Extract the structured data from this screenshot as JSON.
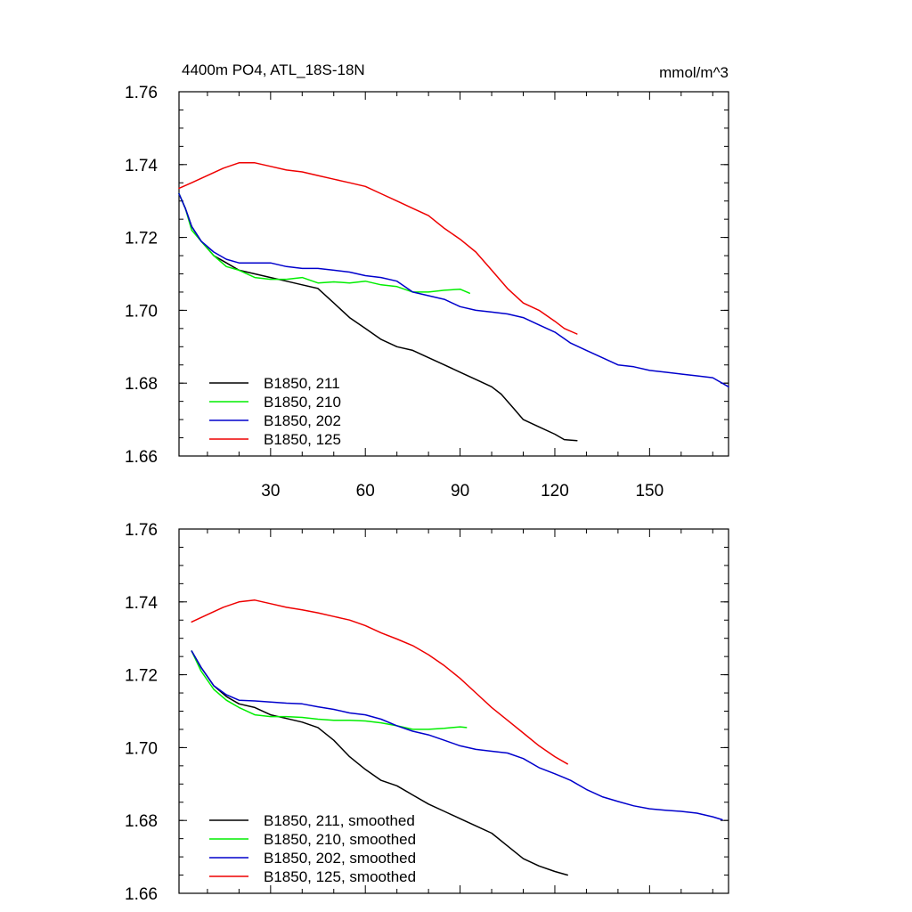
{
  "chart_data": [
    {
      "type": "line",
      "title": "4400m PO4, ATL_18S-18N",
      "units": "mmol/m^3",
      "xlim": [
        1,
        175
      ],
      "ylim": [
        1.66,
        1.76
      ],
      "xticks": [
        30,
        60,
        90,
        120,
        150
      ],
      "yticks": [
        1.66,
        1.68,
        1.7,
        1.72,
        1.74,
        1.76
      ],
      "ytick_labels": [
        "1.66",
        "1.68",
        "1.70",
        "1.72",
        "1.74",
        "1.76"
      ],
      "legend_position": "bottom-left",
      "series": [
        {
          "name": "B1850, 211",
          "color": "#000000",
          "x": [
            1,
            3,
            5,
            8,
            12,
            16,
            20,
            25,
            30,
            35,
            40,
            45,
            50,
            55,
            60,
            65,
            70,
            75,
            80,
            85,
            90,
            95,
            100,
            103,
            107,
            110,
            115,
            120,
            123,
            127
          ],
          "y": [
            1.732,
            1.728,
            1.723,
            1.719,
            1.715,
            1.713,
            1.711,
            1.71,
            1.709,
            1.708,
            1.707,
            1.706,
            1.702,
            1.698,
            1.695,
            1.692,
            1.69,
            1.689,
            1.687,
            1.685,
            1.683,
            1.681,
            1.679,
            1.677,
            1.673,
            1.67,
            1.668,
            1.666,
            1.6645,
            1.6642
          ]
        },
        {
          "name": "B1850, 210",
          "color": "#00ee00",
          "x": [
            1,
            3,
            5,
            8,
            12,
            16,
            20,
            25,
            30,
            35,
            40,
            45,
            50,
            55,
            60,
            65,
            70,
            75,
            80,
            85,
            90,
            93
          ],
          "y": [
            1.732,
            1.728,
            1.722,
            1.719,
            1.715,
            1.712,
            1.711,
            1.709,
            1.7085,
            1.7085,
            1.709,
            1.7075,
            1.7078,
            1.7075,
            1.708,
            1.707,
            1.7065,
            1.705,
            1.705,
            1.7055,
            1.7058,
            1.7047
          ]
        },
        {
          "name": "B1850, 202",
          "color": "#0000cc",
          "x": [
            1,
            3,
            5,
            8,
            12,
            16,
            20,
            25,
            30,
            35,
            40,
            45,
            50,
            55,
            60,
            65,
            70,
            75,
            80,
            85,
            90,
            95,
            100,
            105,
            110,
            115,
            120,
            125,
            130,
            135,
            140,
            145,
            150,
            155,
            160,
            165,
            170,
            175
          ],
          "y": [
            1.732,
            1.728,
            1.723,
            1.719,
            1.716,
            1.714,
            1.713,
            1.713,
            1.713,
            1.712,
            1.7115,
            1.7115,
            1.711,
            1.7105,
            1.7095,
            1.709,
            1.708,
            1.705,
            1.704,
            1.703,
            1.701,
            1.7,
            1.6995,
            1.699,
            1.698,
            1.696,
            1.694,
            1.691,
            1.689,
            1.687,
            1.685,
            1.6845,
            1.6835,
            1.683,
            1.6825,
            1.682,
            1.6815,
            1.679
          ]
        },
        {
          "name": "B1850, 125",
          "color": "#ee0000",
          "x": [
            1,
            5,
            10,
            15,
            20,
            25,
            30,
            35,
            40,
            45,
            50,
            55,
            60,
            65,
            70,
            75,
            80,
            85,
            90,
            95,
            100,
            105,
            110,
            115,
            120,
            123,
            127
          ],
          "y": [
            1.7335,
            1.735,
            1.737,
            1.739,
            1.7405,
            1.7405,
            1.7395,
            1.7385,
            1.738,
            1.737,
            1.736,
            1.735,
            1.734,
            1.732,
            1.73,
            1.728,
            1.726,
            1.7225,
            1.7195,
            1.716,
            1.711,
            1.706,
            1.702,
            1.7,
            1.697,
            1.695,
            1.6935
          ]
        }
      ]
    },
    {
      "type": "line",
      "title": "",
      "xlim": [
        1,
        175
      ],
      "ylim": [
        1.66,
        1.76
      ],
      "xticks": [
        30,
        60,
        90,
        120,
        150
      ],
      "yticks": [
        1.66,
        1.68,
        1.7,
        1.72,
        1.74,
        1.76
      ],
      "ytick_labels": [
        "1.66",
        "1.68",
        "1.70",
        "1.72",
        "1.74",
        "1.76"
      ],
      "legend_position": "bottom-left",
      "series": [
        {
          "name": "B1850, 211, smoothed",
          "color": "#000000",
          "x": [
            5,
            8,
            12,
            16,
            20,
            25,
            30,
            35,
            40,
            45,
            50,
            55,
            60,
            65,
            70,
            75,
            80,
            85,
            90,
            95,
            100,
            105,
            110,
            115,
            120,
            124
          ],
          "y": [
            1.7265,
            1.722,
            1.717,
            1.714,
            1.712,
            1.711,
            1.709,
            1.708,
            1.707,
            1.7055,
            1.702,
            1.6975,
            1.694,
            1.691,
            1.6895,
            1.687,
            1.6845,
            1.6825,
            1.6805,
            1.6785,
            1.6765,
            1.673,
            1.6695,
            1.6675,
            1.666,
            1.665
          ]
        },
        {
          "name": "B1850, 210, smoothed",
          "color": "#00ee00",
          "x": [
            5,
            8,
            12,
            16,
            20,
            25,
            30,
            35,
            40,
            45,
            50,
            55,
            60,
            65,
            70,
            75,
            80,
            85,
            90,
            92
          ],
          "y": [
            1.7265,
            1.721,
            1.716,
            1.713,
            1.711,
            1.709,
            1.7085,
            1.7085,
            1.7083,
            1.7078,
            1.7075,
            1.7075,
            1.7073,
            1.7068,
            1.706,
            1.705,
            1.705,
            1.7053,
            1.7057,
            1.7055
          ]
        },
        {
          "name": "B1850, 202, smoothed",
          "color": "#0000cc",
          "x": [
            5,
            8,
            12,
            16,
            20,
            25,
            30,
            35,
            40,
            45,
            50,
            55,
            60,
            65,
            70,
            75,
            80,
            85,
            90,
            95,
            100,
            105,
            110,
            115,
            120,
            125,
            130,
            135,
            140,
            145,
            150,
            155,
            160,
            165,
            170,
            173
          ],
          "y": [
            1.7265,
            1.722,
            1.717,
            1.7145,
            1.713,
            1.7128,
            1.7125,
            1.7122,
            1.712,
            1.7112,
            1.7105,
            1.7095,
            1.709,
            1.7078,
            1.706,
            1.7045,
            1.7035,
            1.702,
            1.7005,
            1.6995,
            1.699,
            1.6985,
            1.697,
            1.6945,
            1.6928,
            1.691,
            1.6885,
            1.6865,
            1.6852,
            1.684,
            1.6832,
            1.6828,
            1.6825,
            1.682,
            1.681,
            1.6802
          ]
        },
        {
          "name": "B1850, 125, smoothed",
          "color": "#ee0000",
          "x": [
            5,
            10,
            15,
            20,
            25,
            30,
            35,
            40,
            45,
            50,
            55,
            60,
            65,
            70,
            75,
            80,
            85,
            90,
            95,
            100,
            105,
            110,
            115,
            120,
            124
          ],
          "y": [
            1.7345,
            1.7365,
            1.7385,
            1.74,
            1.7405,
            1.7395,
            1.7385,
            1.7378,
            1.737,
            1.736,
            1.735,
            1.7335,
            1.7315,
            1.7298,
            1.728,
            1.7255,
            1.7225,
            1.719,
            1.715,
            1.711,
            1.7075,
            1.704,
            1.7005,
            1.6975,
            1.6955
          ]
        }
      ]
    }
  ]
}
